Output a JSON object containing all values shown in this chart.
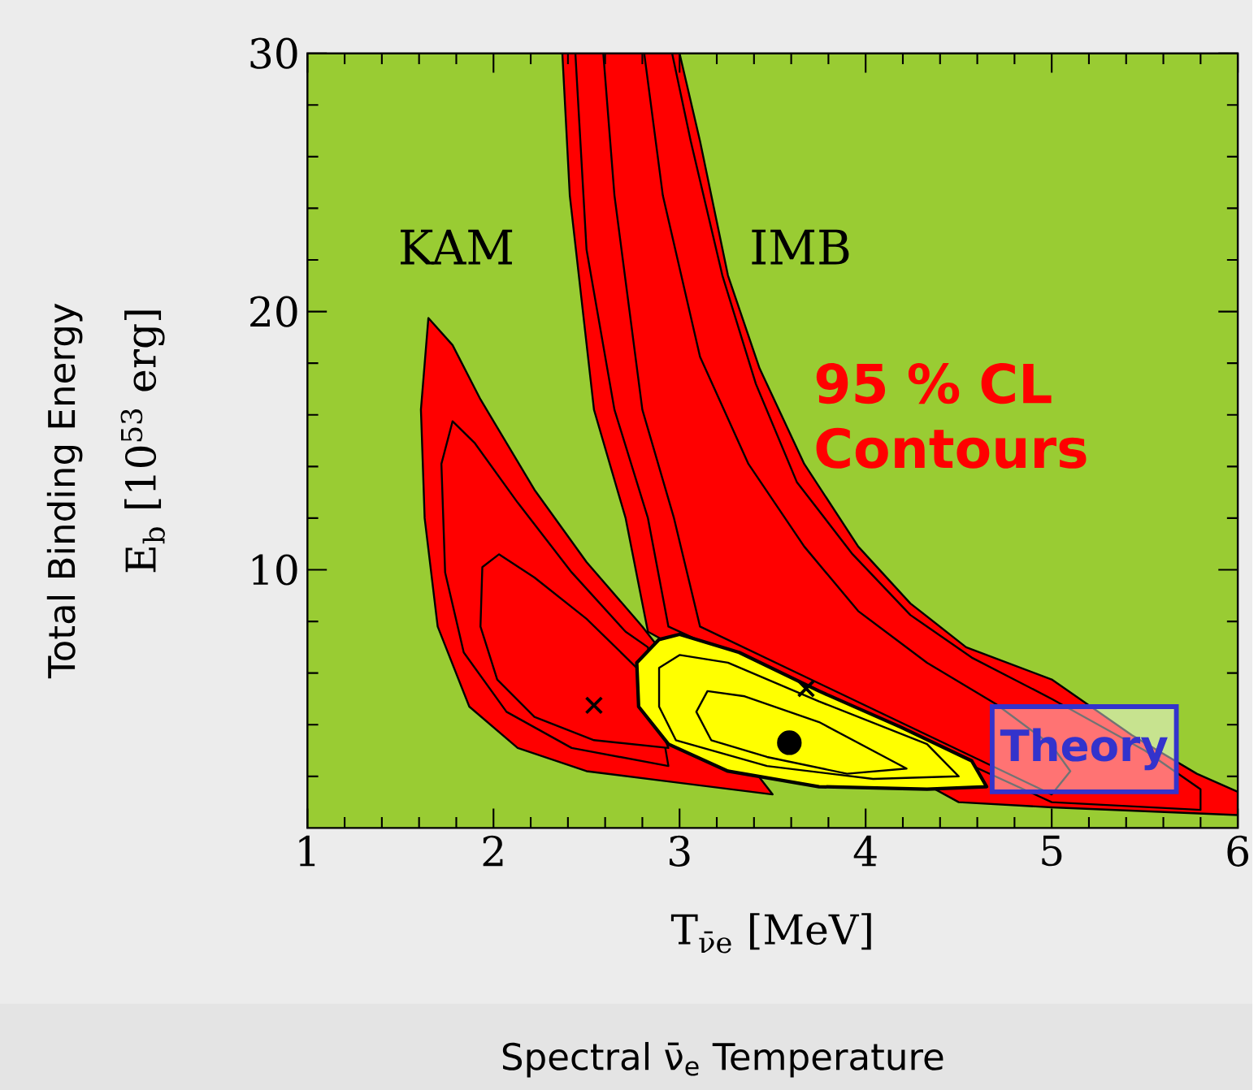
{
  "chart_data": {
    "type": "area",
    "xlabel": "T$_{ν̄e}$ [MeV]",
    "ylabel": "E$_{b}$ [10$^{53}$ erg]",
    "xlim": [
      1,
      6
    ],
    "ylim": [
      0,
      30
    ],
    "xticks": [
      1,
      {
        "value": 1.2,
        "label": null
      },
      {
        "value": 1.4,
        "label": null
      },
      {
        "value": 1.6,
        "label": null
      },
      {
        "value": 1.8,
        "label": null
      },
      2,
      {
        "value": 2.2,
        "label": null
      },
      {
        "value": 2.4,
        "label": null
      },
      {
        "value": 2.6,
        "label": null
      },
      {
        "value": 2.8,
        "label": null
      },
      3,
      {
        "value": 3.2,
        "label": null
      },
      {
        "value": 3.4,
        "label": null
      },
      {
        "value": 3.6,
        "label": null
      },
      {
        "value": 3.8,
        "label": null
      },
      4,
      {
        "value": 4.2,
        "label": null
      },
      {
        "value": 4.4,
        "label": null
      },
      {
        "value": 4.6,
        "label": null
      },
      {
        "value": 4.8,
        "label": null
      },
      5,
      {
        "value": 5.2,
        "label": null
      },
      {
        "value": 5.4,
        "label": null
      },
      {
        "value": 5.6,
        "label": null
      },
      {
        "value": 5.8,
        "label": null
      },
      6
    ],
    "yticks": [
      {
        "value": 2,
        "label": null
      },
      {
        "value": 4,
        "label": null
      },
      {
        "value": 6,
        "label": null
      },
      {
        "value": 8,
        "label": null
      },
      10,
      {
        "value": 12,
        "label": null
      },
      {
        "value": 14,
        "label": null
      },
      {
        "value": 16,
        "label": null
      },
      {
        "value": 18,
        "label": null
      },
      20,
      {
        "value": 22,
        "label": null
      },
      {
        "value": 24,
        "label": null
      },
      {
        "value": 26,
        "label": null
      },
      {
        "value": 28,
        "label": null
      },
      30
    ],
    "bands": [
      {
        "axis": "x",
        "from": 1,
        "to": 6,
        "color": "#99cc33"
      }
    ],
    "series": [
      {
        "color": "#ff0000",
        "x": [
          1.65,
          1.61,
          1.63,
          1.7,
          1.87,
          2.13,
          2.5,
          2.94,
          3.5,
          2.8,
          2.5,
          2.22,
          1.93,
          1.78
        ],
        "values": [
          19.75,
          16.2,
          12,
          7.8,
          4.7,
          3.1,
          2.2,
          1.8,
          1.3,
          7.8,
          10.3,
          13.1,
          16.6,
          18.7
        ]
      },
      {
        "color": "#ff0000",
        "x": [
          1.78,
          1.72,
          1.74,
          1.84,
          2.07,
          2.42,
          2.94,
          2.83,
          2.71,
          2.42,
          2.13,
          1.9
        ],
        "values": [
          15.75,
          14.1,
          9.9,
          6.8,
          4.5,
          3.1,
          2.4,
          7.0,
          7.6,
          9.9,
          12.6,
          14.9
        ]
      },
      {
        "color": "#ff0000",
        "x": [
          2.03,
          1.94,
          1.93,
          2.02,
          2.22,
          2.54,
          2.94,
          2.77,
          2.5,
          2.22
        ],
        "values": [
          10.6,
          10.1,
          7.8,
          5.75,
          4.3,
          3.4,
          3.1,
          6.2,
          8.1,
          9.7
        ]
      },
      {
        "color": "#ff0000",
        "x": [
          2.37,
          2.41,
          2.54,
          2.71,
          2.83,
          4.5,
          5.0,
          6.0,
          6.0,
          5.78,
          5.43,
          5.0,
          4.54,
          4.24,
          3.96,
          3.67,
          3.43,
          3.26,
          3.11,
          3.0
        ],
        "values": [
          30,
          24.5,
          16.2,
          12,
          7.6,
          1.0,
          0.8,
          0.5,
          1.4,
          2.1,
          3.6,
          5.75,
          7.0,
          8.7,
          10.9,
          14.1,
          17.8,
          21.4,
          26.6,
          30
        ]
      },
      {
        "color": "#ff0000",
        "x": [
          2.44,
          2.5,
          2.65,
          2.83,
          2.94,
          5.0,
          5.8,
          5.8,
          5.5,
          5.0,
          4.57,
          4.24,
          3.93,
          3.63,
          3.41,
          3.23,
          3.06,
          2.96
        ],
        "values": [
          30,
          22.4,
          16.2,
          12,
          7.8,
          1.0,
          0.7,
          1.5,
          3.0,
          5.0,
          6.6,
          8.25,
          10.6,
          13.4,
          17.2,
          21.4,
          26.6,
          30
        ]
      },
      {
        "color": "#ff0000",
        "x": [
          2.59,
          2.65,
          2.8,
          2.97,
          3.11,
          5.0,
          5.1,
          5.0,
          4.7,
          4.33,
          3.96,
          3.67,
          3.37,
          3.11,
          2.91,
          2.81
        ],
        "values": [
          30,
          24.5,
          16.2,
          12,
          7.8,
          1.3,
          2.2,
          3.2,
          4.8,
          6.4,
          8.4,
          10.9,
          14.1,
          18.25,
          24.5,
          30
        ]
      },
      {
        "color": "#ffff00",
        "x": [
          2.77,
          2.89,
          3.0,
          3.32,
          3.75,
          4.19,
          4.57,
          4.65,
          4.33,
          3.75,
          3.26,
          2.94,
          2.78
        ],
        "values": [
          6.4,
          7.3,
          7.5,
          6.8,
          5.3,
          3.9,
          2.6,
          1.6,
          1.5,
          1.6,
          2.2,
          3.25,
          4.7
        ]
      },
      {
        "color": "#ffff00",
        "x": [
          2.89,
          3.0,
          3.26,
          3.75,
          4.33,
          4.5,
          4.04,
          3.47,
          2.98,
          2.89
        ],
        "values": [
          6.2,
          6.7,
          6.4,
          4.9,
          3.25,
          2.0,
          1.9,
          2.4,
          3.4,
          4.7
        ]
      },
      {
        "color": "#ffff00",
        "x": [
          3.09,
          3.15,
          3.35,
          3.75,
          4.22,
          3.9,
          3.47,
          3.17
        ],
        "values": [
          4.5,
          5.3,
          5.1,
          4.1,
          2.3,
          2.1,
          2.75,
          3.4
        ]
      },
      {
        "type": "scatter",
        "marker": "cross",
        "color": "#000000",
        "x": [
          2.54,
          3.68
        ],
        "values": [
          4.75,
          5.4
        ]
      },
      {
        "type": "scatter",
        "marker": "circle",
        "color": "#000000",
        "x": [
          3.59
        ],
        "values": [
          3.3
        ]
      },
      {
        "name": "Theory",
        "color": "#3333cc",
        "x": [
          4.68,
          5.67,
          5.67,
          4.68
        ],
        "values": [
          4.7,
          4.7,
          1.4,
          1.4
        ]
      }
    ],
    "annotations": [
      "KAM",
      "IMB",
      "95 % CL Contours",
      "Total Binding Energy",
      "Spectral ν̄$_{e}$ Temperature"
    ]
  }
}
